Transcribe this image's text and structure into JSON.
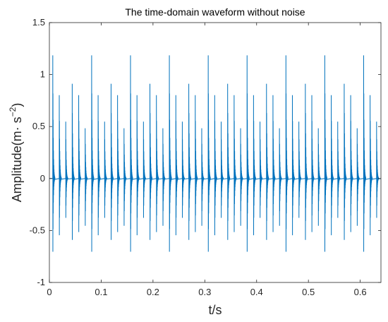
{
  "chart_data": {
    "type": "line",
    "title": "The time-domain waveform without noise",
    "xlabel": "t/s",
    "ylabel_main": "Amplitude(m· s",
    "ylabel_sup": "−2",
    "ylabel_close": ")",
    "xlim": [
      0,
      0.64
    ],
    "ylim": [
      -1,
      1.5
    ],
    "xticks": [
      0,
      0.1,
      0.2,
      0.3,
      0.4,
      0.5,
      0.6
    ],
    "xtick_labels": [
      "0",
      "0.1",
      "0.2",
      "0.3",
      "0.4",
      "0.5",
      "0.6"
    ],
    "yticks": [
      -1,
      -0.5,
      0,
      0.5,
      1,
      1.5
    ],
    "ytick_labels": [
      "-1",
      "-0.5",
      "0",
      "0.5",
      "1",
      "1.5"
    ],
    "grid": false,
    "line_color": "#0072BD",
    "series": [
      {
        "impulse_period_s": 0.0125,
        "first_impulse_s": 0.0065,
        "peak_max_pattern": [
          1.3,
          0.88,
          0.6,
          1.0,
          0.88,
          0.53
        ],
        "peak_min_pattern": [
          -0.93,
          -0.72,
          -0.5,
          -0.78,
          -0.68,
          -0.6
        ],
        "ring_frequency_hz": 3000,
        "decay_time_s": 0.0009
      }
    ]
  }
}
